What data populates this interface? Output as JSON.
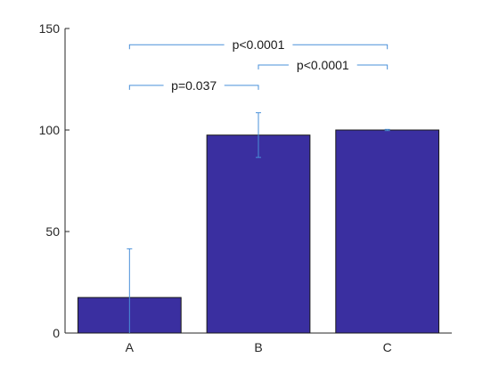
{
  "chart_data": {
    "type": "bar",
    "categories": [
      "A",
      "B",
      "C"
    ],
    "values": [
      17.5,
      97.5,
      100
    ],
    "errors": [
      24,
      11,
      0.3
    ],
    "ylim": [
      0,
      150
    ],
    "yticks": [
      0,
      50,
      100,
      150
    ],
    "title": "",
    "xlabel": "",
    "ylabel": "",
    "bar_color": "#3a2fa0",
    "error_color": "#4a90d9",
    "bracket_color": "#4a90d9",
    "annotations": [
      {
        "from": "A",
        "to": "C",
        "y": 142,
        "label": "p<0.0001"
      },
      {
        "from": "B",
        "to": "C",
        "y": 132,
        "label": "p<0.0001"
      },
      {
        "from": "A",
        "to": "B",
        "y": 122,
        "label": "p=0.037"
      }
    ]
  }
}
